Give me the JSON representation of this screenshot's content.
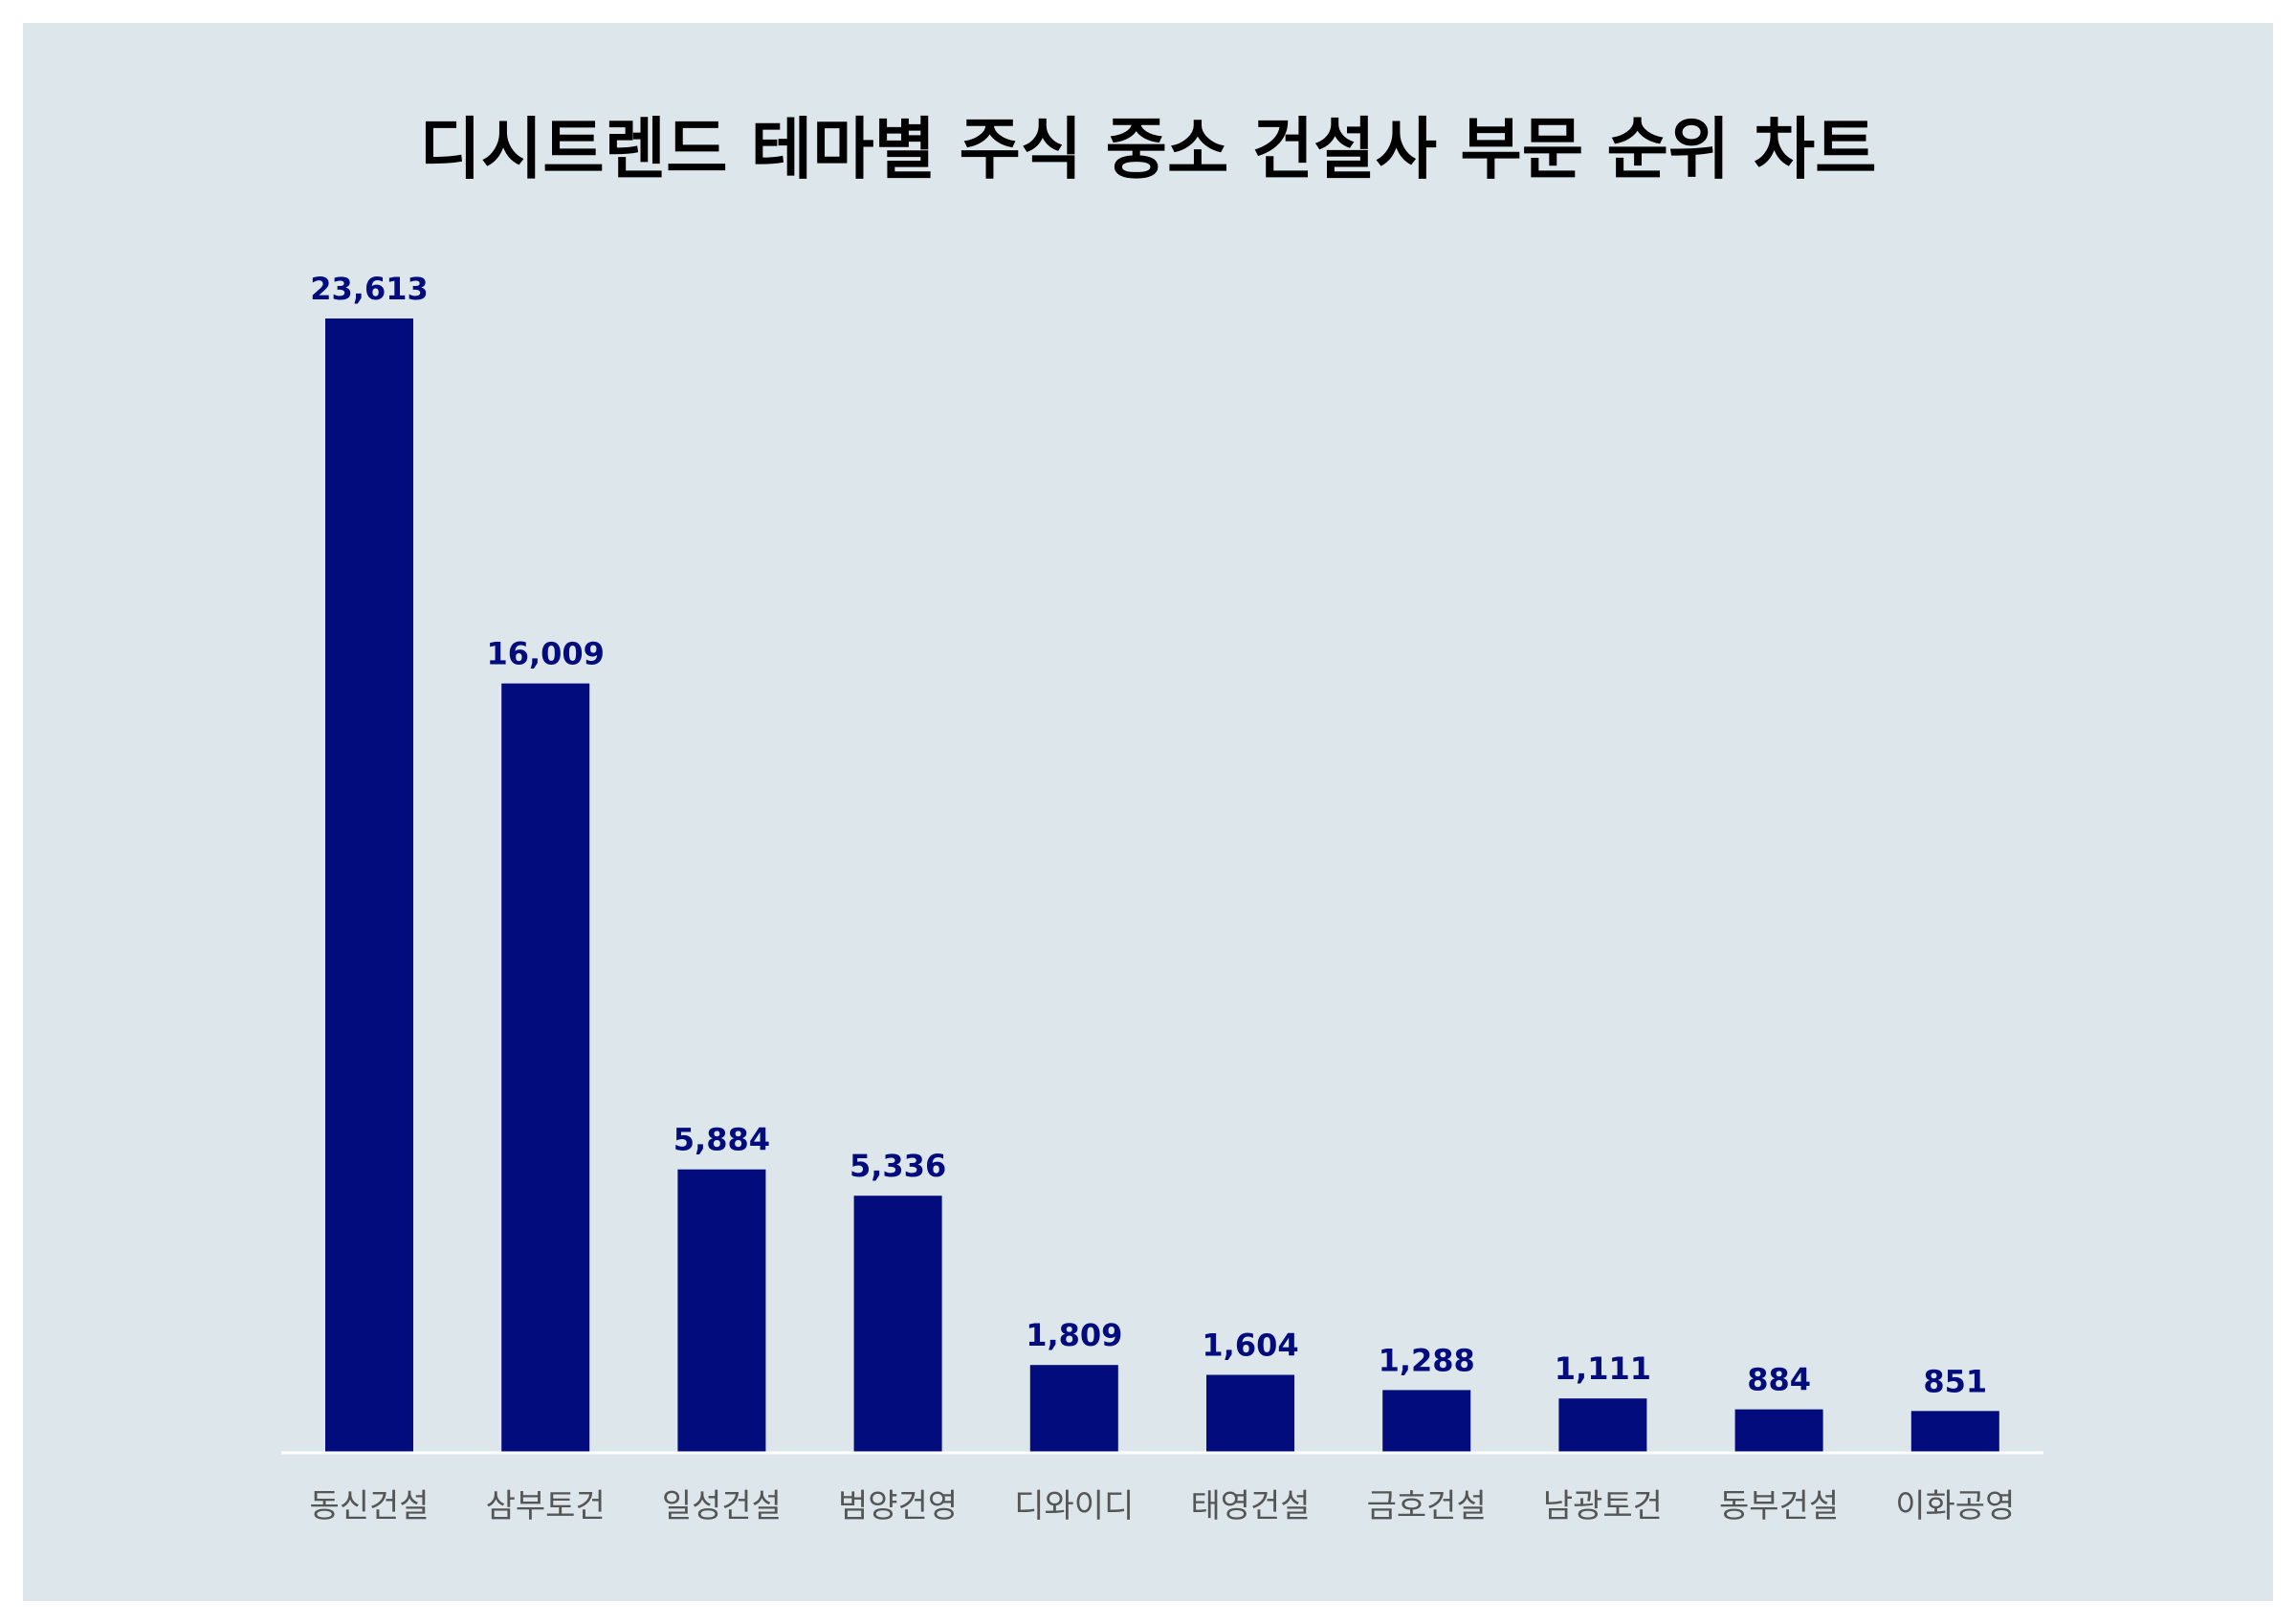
{
  "chart_data": {
    "type": "bar",
    "title": "디시트렌드 테마별 주식 중소 건설사 부문 순위 차트",
    "xlabel": "",
    "ylabel": "",
    "categories": [
      "동신건설",
      "삼부토건",
      "일성건설",
      "범양건영",
      "디와이디",
      "태영건설",
      "금호건설",
      "남광토건",
      "동부건설",
      "이화공영"
    ],
    "values": [
      23613,
      16009,
      5884,
      5336,
      1809,
      1604,
      1288,
      1111,
      884,
      851
    ],
    "value_labels": [
      "23,613",
      "16,009",
      "5,884",
      "5,336",
      "1,809",
      "1,604",
      "1,288",
      "1,111",
      "884",
      "851"
    ],
    "ylim": [
      0,
      23613
    ],
    "grid": false,
    "legend": "none"
  },
  "colors": {
    "background": "#dce6eb",
    "bar": "#020c7d",
    "value_label": "#020c7d",
    "category_label": "#555555",
    "axis_line": "#ffffff",
    "title": "#000000"
  }
}
